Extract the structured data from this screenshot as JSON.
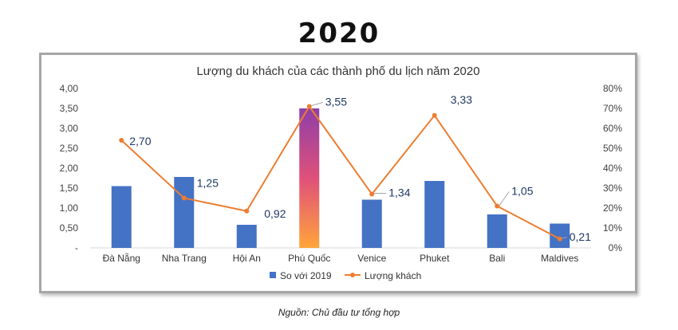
{
  "heading": "2020",
  "source_note": "Nguồn: Chủ đầu tư tổng hợp",
  "colors": {
    "bar": "#4472c4",
    "line": "#ed7d31",
    "highlight_top": "#8e3fa8",
    "highlight_mid": "#e0507a",
    "highlight_bottom": "#ffa53a"
  },
  "chart_data": {
    "type": "bar",
    "title": "Lượng du khách của các thành phố du lịch năm 2020",
    "categories": [
      "Đà Nẵng",
      "Nha Trang",
      "Hội An",
      "Phú Quốc",
      "Venice",
      "Phuket",
      "Bali",
      "Maldives"
    ],
    "series": [
      {
        "name": "So với 2019",
        "type": "bar",
        "axis": "left",
        "values": [
          1.55,
          1.78,
          0.58,
          3.5,
          1.21,
          1.68,
          0.84,
          0.61
        ],
        "highlight_index": 3
      },
      {
        "name": "Lượng khách",
        "type": "line",
        "axis": "right",
        "values": [
          2.7,
          1.25,
          0.92,
          3.55,
          1.34,
          3.33,
          1.05,
          0.21
        ],
        "value_labels": [
          "2,70",
          "1,25",
          "0,92",
          "3,55",
          "1,34",
          "3,33",
          "1,05",
          "0,21"
        ]
      }
    ],
    "y_left": {
      "min": 0,
      "max": 4,
      "ticks": [
        0,
        0.5,
        1,
        1.5,
        2,
        2.5,
        3,
        3.5,
        4
      ],
      "tick_labels": [
        "-",
        "0,50",
        "1,00",
        "1,50",
        "2,00",
        "2,50",
        "3,00",
        "3,50",
        "4,00"
      ]
    },
    "y_right": {
      "min": 0,
      "max": 0.8,
      "ticks": [
        0,
        0.1,
        0.2,
        0.3,
        0.4,
        0.5,
        0.6,
        0.7,
        0.8
      ],
      "tick_labels": [
        "0%",
        "10%",
        "20%",
        "30%",
        "40%",
        "50%",
        "60%",
        "70%",
        "80%"
      ]
    },
    "line_right_axis_values": [
      0.54,
      0.25,
      0.185,
      0.71,
      0.27,
      0.665,
      0.21,
      0.045
    ],
    "grid": false,
    "legend_position": "bottom"
  }
}
